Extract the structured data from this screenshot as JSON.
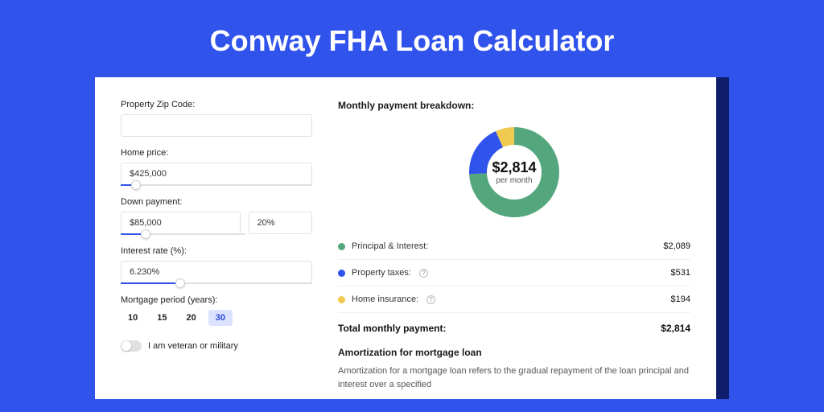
{
  "page": {
    "title": "Conway FHA Loan Calculator",
    "background_color": "#3053eb",
    "card_shadow_color": "#0f1e6b",
    "card_background": "#ffffff"
  },
  "form": {
    "zip": {
      "label": "Property Zip Code:",
      "value": ""
    },
    "home_price": {
      "label": "Home price:",
      "value": "$425,000",
      "slider_fill_pct": 8,
      "thumb_pct": 8
    },
    "down_payment": {
      "label": "Down payment:",
      "amount": "$85,000",
      "percent": "20%",
      "slider_fill_pct": 20,
      "thumb_pct": 20
    },
    "interest": {
      "label": "Interest rate (%):",
      "value": "6.230%",
      "slider_fill_pct": 31,
      "thumb_pct": 31
    },
    "period": {
      "label": "Mortgage period (years):",
      "options": [
        "10",
        "15",
        "20",
        "30"
      ],
      "selected": "30"
    },
    "veteran": {
      "label": "I am veteran or military",
      "value": false
    }
  },
  "breakdown": {
    "title": "Monthly payment breakdown:",
    "donut": {
      "amount": "$2,814",
      "sub": "per month",
      "radius": 45,
      "stroke_width": 22,
      "slices": [
        {
          "key": "principal_interest",
          "color": "#54a77c",
          "pct": 74.2
        },
        {
          "key": "property_taxes",
          "color": "#3053eb",
          "pct": 18.9
        },
        {
          "key": "home_insurance",
          "color": "#f0c94f",
          "pct": 6.9
        }
      ]
    },
    "legend": [
      {
        "label": "Principal & Interest:",
        "color": "#54a77c",
        "value": "$2,089",
        "help": false
      },
      {
        "label": "Property taxes:",
        "color": "#3053eb",
        "value": "$531",
        "help": true
      },
      {
        "label": "Home insurance:",
        "color": "#f0c94f",
        "value": "$194",
        "help": true
      }
    ],
    "total": {
      "label": "Total monthly payment:",
      "value": "$2,814"
    }
  },
  "amortization": {
    "title": "Amortization for mortgage loan",
    "text": "Amortization for a mortgage loan refers to the gradual repayment of the loan principal and interest over a specified"
  }
}
